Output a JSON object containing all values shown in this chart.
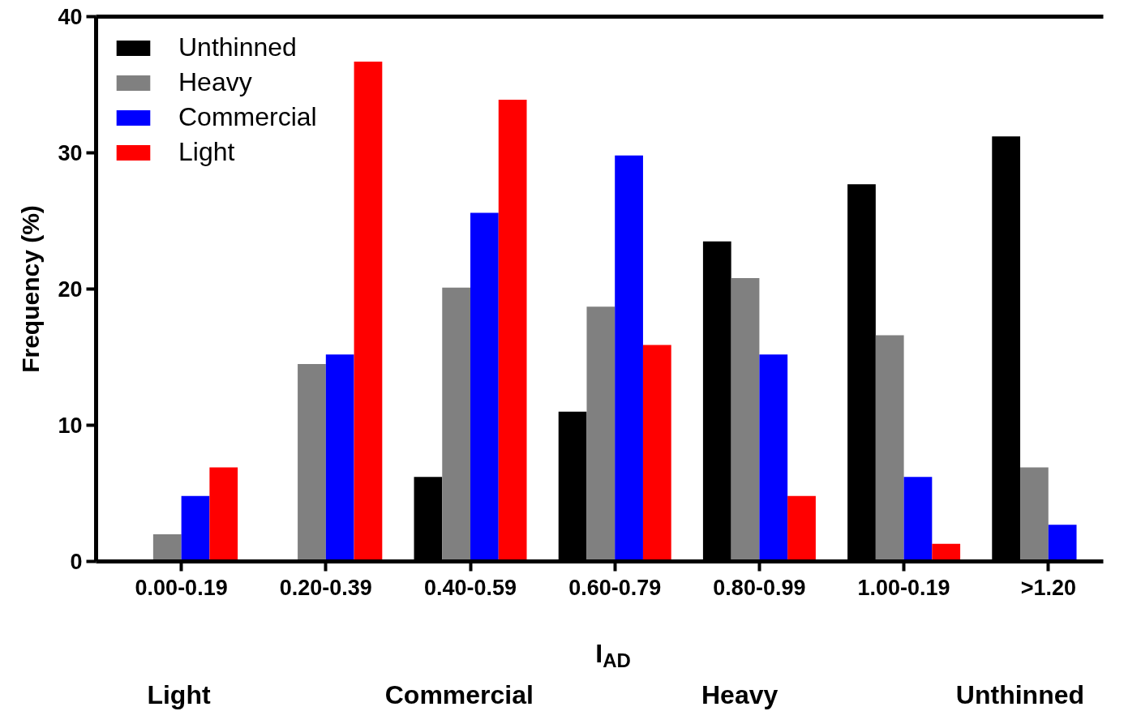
{
  "chart_data": {
    "type": "bar",
    "xlabel": "I$_{AD}$",
    "ylabel": "Frequency (%)",
    "categories": [
      "0.00-0.19",
      "0.20-0.39",
      "0.40-0.59",
      "0.60-0.79",
      "0.80-0.99",
      "1.00-0.19",
      ">1.20"
    ],
    "series": [
      {
        "name": "Unthinned",
        "color": "#000000",
        "values": [
          0,
          0,
          6.2,
          11.0,
          23.5,
          27.7,
          31.2
        ]
      },
      {
        "name": "Heavy",
        "color": "#808080",
        "values": [
          2.0,
          14.5,
          20.1,
          18.7,
          20.8,
          16.6,
          6.9
        ]
      },
      {
        "name": "Commercial",
        "color": "#0000ff",
        "values": [
          4.8,
          15.2,
          25.6,
          29.8,
          15.2,
          6.2,
          2.7
        ]
      },
      {
        "name": "Light",
        "color": "#ff0000",
        "values": [
          6.9,
          36.7,
          33.9,
          15.9,
          4.8,
          1.3,
          0
        ]
      }
    ],
    "ylim": [
      0,
      40
    ],
    "yticks": [
      0,
      10,
      20,
      30,
      40
    ],
    "grid": false,
    "legend": "top left",
    "annotations": [
      "Light",
      "Commercial",
      "Heavy",
      "Unthinned"
    ]
  }
}
